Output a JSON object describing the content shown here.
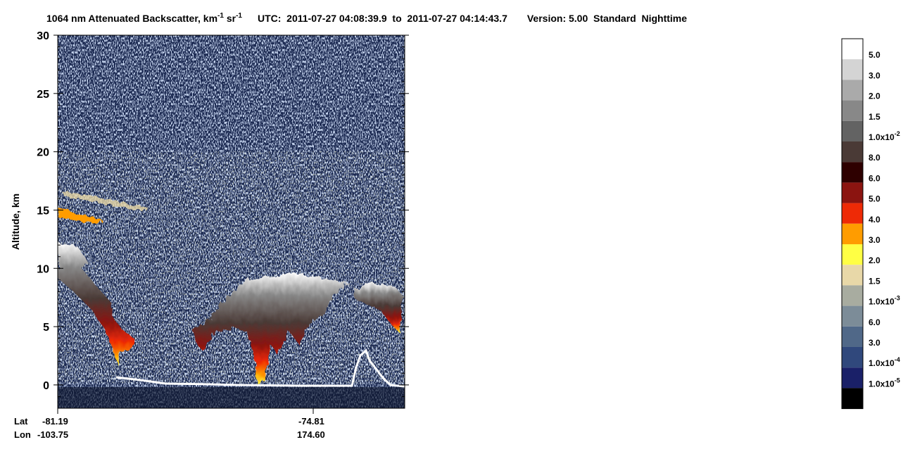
{
  "chart_data": {
    "type": "curtain",
    "title": {
      "main": "1064 nm Attenuated Backscatter, km",
      "exp1": "-1",
      "unit2": " sr",
      "exp2": "-1",
      "time": "UTC:  2011-07-27 04:08:39.9  to  2011-07-27 04:14:43.7",
      "version": "Version: 5.00  Standard  Nighttime"
    },
    "y_label": "Altitude, km",
    "ylim": [
      -2,
      30
    ],
    "yticks": [
      0,
      5,
      10,
      15,
      20,
      25,
      30
    ],
    "x_row_labels": [
      "Lat",
      "Lon"
    ],
    "x_ticks": [
      {
        "lat": "-81.19",
        "lon": "-103.75"
      },
      {
        "lat": "-74.81",
        "lon": "174.60"
      }
    ],
    "colorbar": {
      "colors": [
        "#ffffff",
        "#d4d4d4",
        "#aaaaaa",
        "#888888",
        "#636363",
        "#4a3a36",
        "#2e0000",
        "#8b1410",
        "#ee2a06",
        "#ff9c00",
        "#ffff44",
        "#e8d8a8",
        "#a8aca0",
        "#7c8c98",
        "#506888",
        "#30487c",
        "#1a2068",
        "#000000"
      ],
      "labels": [
        {
          "text": "5.0"
        },
        {
          "text": "3.0"
        },
        {
          "text": "2.0"
        },
        {
          "text": "1.5"
        },
        {
          "text": "1.0x10",
          "exp": "-2"
        },
        {
          "text": "8.0"
        },
        {
          "text": "6.0"
        },
        {
          "text": "5.0"
        },
        {
          "text": "4.0"
        },
        {
          "text": "3.0"
        },
        {
          "text": "2.0"
        },
        {
          "text": "1.5"
        },
        {
          "text": "1.0x10",
          "exp": "-3"
        },
        {
          "text": "6.0"
        },
        {
          "text": "3.0"
        },
        {
          "text": "1.0x10",
          "exp": "-4"
        },
        {
          "text": "1.0x10",
          "exp": "-5"
        }
      ]
    }
  }
}
